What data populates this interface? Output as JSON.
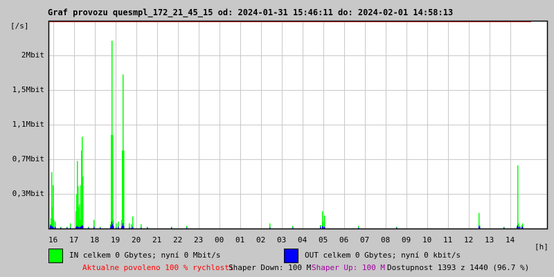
{
  "title": "Graf provozu quesmpl_172_21_45_15 od: 2024-01-31 15:46:11 do: 2024-02-01 14:58:13",
  "colors": {
    "in": "#00ff00",
    "out": "#0000ff",
    "limit": "#ff0000",
    "grid": "#c8c8c8",
    "red_text": "#ff0000",
    "purple_text": "#a000a0"
  },
  "chart_data": {
    "type": "bar",
    "title": "Graf provozu quesmpl_172_21_45_15 od: 2024-01-31 15:46:11 do: 2024-02-01 14:58:13",
    "ylabel": "[/s]",
    "xlabel": "[h]",
    "y_ticks": [
      {
        "value": 0.4,
        "label": "0,3Mbit"
      },
      {
        "value": 0.8,
        "label": "0,7Mbit"
      },
      {
        "value": 1.2,
        "label": "1,1Mbit"
      },
      {
        "value": 1.6,
        "label": "1,5Mbit"
      },
      {
        "value": 2.0,
        "label": "2Mbit"
      }
    ],
    "ylim_mbit": [
      0,
      2.4
    ],
    "x_ticks": [
      "16",
      "17",
      "18",
      "19",
      "20",
      "21",
      "22",
      "23",
      "00",
      "01",
      "02",
      "03",
      "04",
      "05",
      "06",
      "07",
      "08",
      "09",
      "10",
      "11",
      "12",
      "13",
      "14"
    ],
    "x_range": [
      "15:46",
      "15:46 +1d"
    ],
    "grid": true,
    "series": [
      {
        "name": "IN",
        "color": "#00ff00"
      },
      {
        "name": "OUT",
        "color": "#0000ff"
      }
    ],
    "points": [
      [
        "15:50",
        0.05,
        0.03
      ],
      [
        "15:52",
        0.12,
        0.04
      ],
      [
        "15:54",
        0.65,
        0.03
      ],
      [
        "15:56",
        0.25,
        0.02
      ],
      [
        "15:58",
        0.5,
        0.02
      ],
      [
        "16:00",
        0.1,
        0.01
      ],
      [
        "16:04",
        0.08,
        0.02
      ],
      [
        "16:20",
        0.02,
        0.01
      ],
      [
        "16:38",
        0.02,
        0.01
      ],
      [
        "16:48",
        0.06,
        0.01
      ],
      [
        "17:04",
        0.2,
        0.02
      ],
      [
        "17:06",
        0.4,
        0.02
      ],
      [
        "17:08",
        0.78,
        0.03
      ],
      [
        "17:10",
        0.49,
        0.02
      ],
      [
        "17:12",
        0.25,
        0.02
      ],
      [
        "17:14",
        0.28,
        0.01
      ],
      [
        "17:16",
        0.1,
        0.02
      ],
      [
        "17:18",
        0.5,
        0.02
      ],
      [
        "17:20",
        0.9,
        0.03
      ],
      [
        "17:22",
        1.06,
        0.04
      ],
      [
        "17:24",
        0.6,
        0.03
      ],
      [
        "17:40",
        0.02,
        0.01
      ],
      [
        "17:56",
        0.1,
        0.02
      ],
      [
        "18:14",
        0.02,
        0.01
      ],
      [
        "18:44",
        0.05,
        0.02
      ],
      [
        "18:46",
        1.08,
        0.04
      ],
      [
        "18:48",
        2.17,
        0.08
      ],
      [
        "18:50",
        1.08,
        0.05
      ],
      [
        "18:52",
        0.1,
        0.03
      ],
      [
        "19:00",
        0.06,
        0.01
      ],
      [
        "19:06",
        0.08,
        0.02
      ],
      [
        "19:16",
        0.1,
        0.02
      ],
      [
        "19:18",
        0.9,
        0.03
      ],
      [
        "19:20",
        1.78,
        0.06
      ],
      [
        "19:22",
        0.9,
        0.03
      ],
      [
        "19:38",
        0.06,
        0.01
      ],
      [
        "19:44",
        0.05,
        0.01
      ],
      [
        "19:48",
        0.14,
        0.02
      ],
      [
        "20:12",
        0.05,
        0.01
      ],
      [
        "20:30",
        0.02,
        0.01
      ],
      [
        "21:40",
        0.02,
        0.01
      ],
      [
        "22:24",
        0.03,
        0.01
      ],
      [
        "02:24",
        0.06,
        0.01
      ],
      [
        "03:30",
        0.03,
        0.01
      ],
      [
        "04:50",
        0.04,
        0.02
      ],
      [
        "04:56",
        0.2,
        0.03
      ],
      [
        "04:58",
        0.08,
        0.02
      ],
      [
        "05:02",
        0.15,
        0.02
      ],
      [
        "06:40",
        0.03,
        0.01
      ],
      [
        "08:30",
        0.02,
        0.01
      ],
      [
        "12:28",
        0.18,
        0.03
      ],
      [
        "12:30",
        0.04,
        0.02
      ],
      [
        "13:40",
        0.02,
        0.01
      ],
      [
        "14:18",
        0.03,
        0.02
      ],
      [
        "14:20",
        0.73,
        0.04
      ],
      [
        "14:22",
        0.06,
        0.02
      ],
      [
        "14:26",
        0.03,
        0.02
      ],
      [
        "14:32",
        0.04,
        0.02
      ],
      [
        "14:34",
        0.06,
        0.02
      ]
    ]
  },
  "legend": {
    "in_text": "IN celkem 0 Gbytes; nyní 0 Mbit/s",
    "out_text": "OUT celkem 0 Gbytes; nyní 0 kbit/s"
  },
  "footer": {
    "allowed": "Aktualne povoleno 100 % rychlosti",
    "shaper_down": "Shaper Down: 100 M",
    "shaper_up": "Shaper Up: 100 M",
    "availability": "Dostupnost 1393 z 1440 (96.7 %)"
  }
}
